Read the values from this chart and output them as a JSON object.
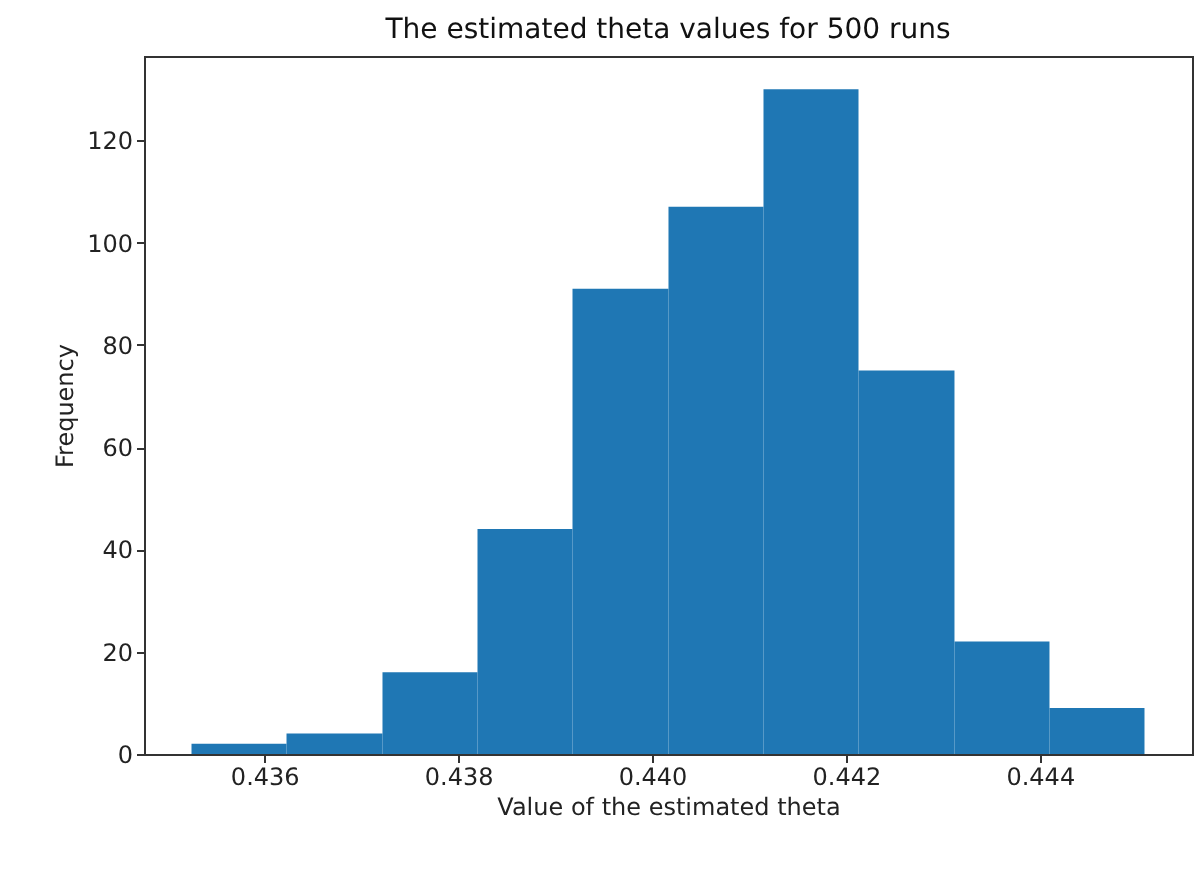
{
  "chart_data": {
    "type": "histogram",
    "title": "The estimated theta values for 500 runs",
    "xlabel": "Value of the estimated theta",
    "ylabel": "Frequency",
    "bins": [
      0.43525,
      0.43623,
      0.43722,
      0.4382,
      0.43918,
      0.44017,
      0.44115,
      0.44213,
      0.44312,
      0.4441,
      0.44508
    ],
    "values": [
      2,
      4,
      16,
      44,
      91,
      107,
      130,
      75,
      22,
      9
    ],
    "color": "#1f77b4",
    "xlim": [
      0.43476,
      0.44557
    ],
    "ylim": [
      0,
      136.5
    ],
    "xticks": [
      0.436,
      0.438,
      {
        "value": 0.44,
        "label": "0.440"
      },
      0.442,
      0.444
    ],
    "yticks": [
      0,
      20,
      40,
      60,
      80,
      100,
      120
    ],
    "grid": false
  }
}
